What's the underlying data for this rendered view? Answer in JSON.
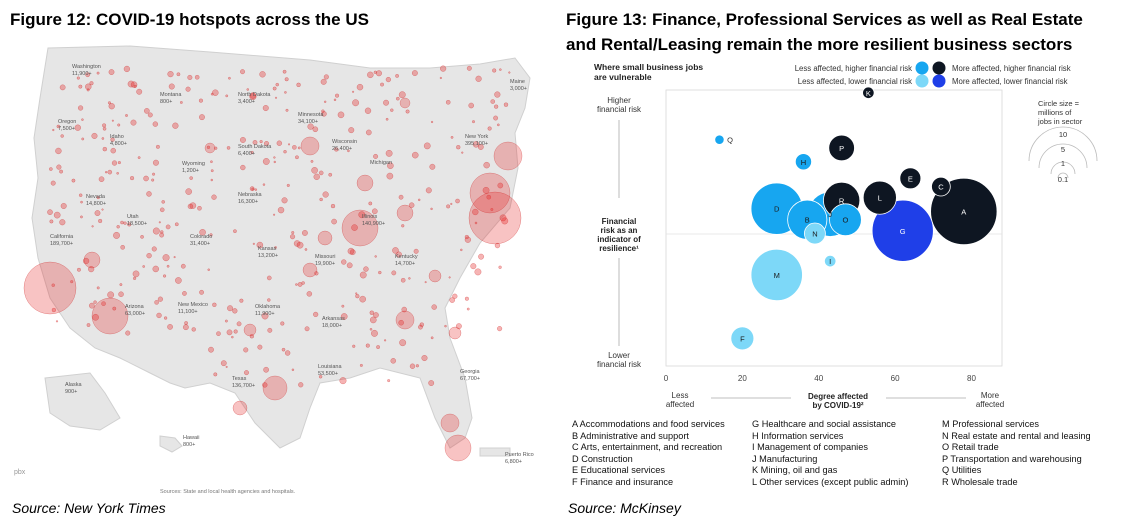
{
  "left_figure": {
    "title": "Figure 12: COVID-19 hotspots across the US",
    "source": "Source: New York Times",
    "map_labels": [
      {
        "name": "Washington",
        "value": "11,900+"
      },
      {
        "name": "Montana",
        "value": "800+"
      },
      {
        "name": "North Dakota",
        "value": "3,400+"
      },
      {
        "name": "Minnesota",
        "value": "34,100+"
      },
      {
        "name": "Maine",
        "value": "3,000+"
      },
      {
        "name": "Oregon",
        "value": "7,500+"
      },
      {
        "name": "Idaho",
        "value": "4,800+"
      },
      {
        "name": "South Dakota",
        "value": "6,400+"
      },
      {
        "name": "Wisconsin",
        "value": "26,400+"
      },
      {
        "name": "New York",
        "value": "395,100+"
      },
      {
        "name": "Wyoming",
        "value": "1,200+"
      },
      {
        "name": "Michigan",
        "value": ""
      },
      {
        "name": "Nevada",
        "value": "14,800+"
      },
      {
        "name": "Utah",
        "value": "18,500+"
      },
      {
        "name": "Nebraska",
        "value": "16,300+"
      },
      {
        "name": "Colorado",
        "value": "31,400+"
      },
      {
        "name": "Illinois",
        "value": "140,900+"
      },
      {
        "name": "California",
        "value": "189,700+"
      },
      {
        "name": "Kansas",
        "value": "13,200+"
      },
      {
        "name": "Missouri",
        "value": "19,900+"
      },
      {
        "name": "Kentucky",
        "value": "14,700+"
      },
      {
        "name": "Arizona",
        "value": "63,000+"
      },
      {
        "name": "New Mexico",
        "value": "11,100+"
      },
      {
        "name": "Oklahoma",
        "value": "11,900+"
      },
      {
        "name": "Arkansas",
        "value": "18,000+"
      },
      {
        "name": "Georgia",
        "value": "67,700+"
      },
      {
        "name": "Texas",
        "value": "136,700+"
      },
      {
        "name": "Louisiana",
        "value": "53,500+"
      },
      {
        "name": "Alaska",
        "value": "900+"
      },
      {
        "name": "Hawaii",
        "value": "800+"
      },
      {
        "name": "Puerto Rico",
        "value": "6,800+"
      }
    ],
    "map_note": "Sources: State and local health agencies and hospitals.",
    "watermark": "pbx"
  },
  "right_figure": {
    "title_line1": "Figure 13: Finance, Professional Services as well as Real Estate",
    "title_line2": "and Rental/Leasing remain the more resilient business sectors",
    "source": "Source: McKinsey",
    "chart_title_line1": "Where small business jobs",
    "chart_title_line2": "are vulnerable",
    "legend": [
      {
        "label": "Less affected, higher financial risk",
        "color": "#17a6f0"
      },
      {
        "label": "More affected, higher financial risk",
        "color": "#0e1622"
      },
      {
        "label": "Less affected, lower financial risk",
        "color": "#7dd8f8"
      },
      {
        "label": "More affected, lower financial risk",
        "color": "#1f3fe8"
      }
    ],
    "size_legend": {
      "title_line1": "Circle size =",
      "title_line2": "millions of",
      "title_line3": "jobs in sector",
      "values": [
        "10",
        "5",
        "1",
        "0.1"
      ]
    },
    "y_axis": {
      "top_line1": "Higher",
      "top_line2": "financial risk",
      "mid_line1": "Financial",
      "mid_line2": "risk as an",
      "mid_line3": "indicator of",
      "mid_line4": "resilience¹",
      "bottom_line1": "Lower",
      "bottom_line2": "financial risk"
    },
    "x_axis": {
      "title_line1": "Degree affected",
      "title_line2": "by COVID-19²",
      "left_line1": "Less",
      "left_line2": "affected",
      "right_line1": "More",
      "right_line2": "affected"
    },
    "sector_key": [
      [
        "A  Accommodations and food services",
        "B  Administrative and support",
        "C  Arts, entertainment, and recreation",
        "D  Construction",
        "E  Educational services",
        "F  Finance and insurance"
      ],
      [
        "G  Healthcare and social assistance",
        "H  Information services",
        "I   Management of companies",
        "J  Manufacturing",
        "K  Mining, oil and gas",
        "L  Other services (except public admin)"
      ],
      [
        "M  Professional services",
        "N  Real estate and rental and leasing",
        "O  Retail trade",
        "P  Transportation and warehousing",
        "Q  Utilities",
        "R  Wholesale trade"
      ]
    ]
  },
  "chart_data": {
    "type": "scatter",
    "subtype": "bubble",
    "title": "Where small business jobs are vulnerable",
    "xlabel": "Degree affected by COVID-19²",
    "ylabel": "Financial risk as an indicator of resilience¹",
    "xlim": [
      0,
      88
    ],
    "xticks": [
      0,
      20,
      40,
      60,
      80
    ],
    "ylim": [
      0,
      100
    ],
    "grid": false,
    "legend_position": "top-right",
    "points": [
      {
        "id": "K",
        "x": 53,
        "y": 99,
        "size": 0.3,
        "group": 1
      },
      {
        "id": "Q",
        "x": 14,
        "y": 82,
        "size": 0.2,
        "group": 0,
        "outside_label": true
      },
      {
        "id": "P",
        "x": 46,
        "y": 79,
        "size": 1.5,
        "group": 1
      },
      {
        "id": "H",
        "x": 36,
        "y": 74,
        "size": 0.6,
        "group": 0
      },
      {
        "id": "E",
        "x": 64,
        "y": 68,
        "size": 1.0,
        "group": 1
      },
      {
        "id": "C",
        "x": 72,
        "y": 65,
        "size": 0.8,
        "group": 1
      },
      {
        "id": "L",
        "x": 56,
        "y": 61,
        "size": 2.5,
        "group": 1
      },
      {
        "id": "R",
        "x": 46,
        "y": 60,
        "size": 3.0,
        "group": 1
      },
      {
        "id": "D",
        "x": 29,
        "y": 57,
        "size": 6.0,
        "group": 0
      },
      {
        "id": "J",
        "x": 43,
        "y": 55,
        "size": 4.5,
        "group": 0
      },
      {
        "id": "A",
        "x": 78,
        "y": 56,
        "size": 10.0,
        "group": 1
      },
      {
        "id": "B",
        "x": 37,
        "y": 53,
        "size": 3.5,
        "group": 0
      },
      {
        "id": "O",
        "x": 47,
        "y": 53,
        "size": 2.3,
        "group": 0
      },
      {
        "id": "G",
        "x": 62,
        "y": 49,
        "size": 8.5,
        "group": 3
      },
      {
        "id": "N",
        "x": 39,
        "y": 48,
        "size": 1.0,
        "group": 2
      },
      {
        "id": "I",
        "x": 43,
        "y": 38,
        "size": 0.3,
        "group": 2
      },
      {
        "id": "M",
        "x": 29,
        "y": 33,
        "size": 6.0,
        "group": 2
      },
      {
        "id": "F",
        "x": 20,
        "y": 10,
        "size": 1.2,
        "group": 2
      }
    ]
  }
}
